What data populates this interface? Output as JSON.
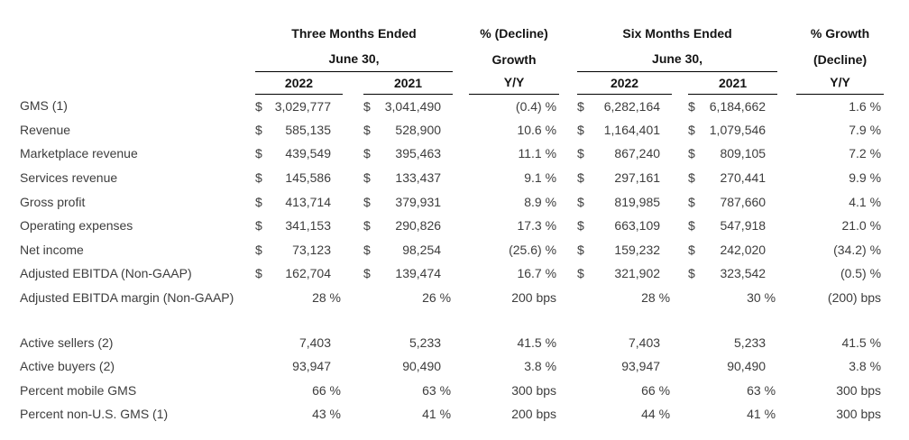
{
  "colors": {
    "background": "#ffffff",
    "header_text": "#141414",
    "body_text": "#3d3d3d",
    "rule": "#000000"
  },
  "table": {
    "currency_symbol": "$",
    "col_groups": {
      "three_months": {
        "title": "Three Months Ended",
        "subtitle": "June 30,",
        "years": [
          "2022",
          "2021"
        ]
      },
      "yoy_left": {
        "line1": "% (Decline)",
        "line2": "Growth",
        "line3": "Y/Y"
      },
      "six_months": {
        "title": "Six Months Ended",
        "subtitle": "June 30,",
        "years": [
          "2022",
          "2021"
        ]
      },
      "yoy_right": {
        "line1": "% Growth",
        "line2": "(Decline)",
        "line3": "Y/Y"
      }
    },
    "rows": [
      {
        "label": "GMS (1)",
        "cells": [
          {
            "type": "money",
            "value": "3,029,777"
          },
          {
            "type": "money",
            "value": "3,041,490"
          },
          {
            "type": "yoy",
            "value": "(0.4) %"
          },
          {
            "type": "money",
            "value": "6,282,164"
          },
          {
            "type": "money",
            "value": "6,184,662"
          },
          {
            "type": "yoy",
            "value": "1.6 %"
          }
        ]
      },
      {
        "label": "Revenue",
        "cells": [
          {
            "type": "money",
            "value": "585,135"
          },
          {
            "type": "money",
            "value": "528,900"
          },
          {
            "type": "yoy",
            "value": "10.6 %"
          },
          {
            "type": "money",
            "value": "1,164,401"
          },
          {
            "type": "money",
            "value": "1,079,546"
          },
          {
            "type": "yoy",
            "value": "7.9 %"
          }
        ]
      },
      {
        "label": "Marketplace revenue",
        "cells": [
          {
            "type": "money",
            "value": "439,549"
          },
          {
            "type": "money",
            "value": "395,463"
          },
          {
            "type": "yoy",
            "value": "11.1 %"
          },
          {
            "type": "money",
            "value": "867,240"
          },
          {
            "type": "money",
            "value": "809,105"
          },
          {
            "type": "yoy",
            "value": "7.2 %"
          }
        ]
      },
      {
        "label": "Services revenue",
        "cells": [
          {
            "type": "money",
            "value": "145,586"
          },
          {
            "type": "money",
            "value": "133,437"
          },
          {
            "type": "yoy",
            "value": "9.1 %"
          },
          {
            "type": "money",
            "value": "297,161"
          },
          {
            "type": "money",
            "value": "270,441"
          },
          {
            "type": "yoy",
            "value": "9.9 %"
          }
        ]
      },
      {
        "label": "Gross profit",
        "cells": [
          {
            "type": "money",
            "value": "413,714"
          },
          {
            "type": "money",
            "value": "379,931"
          },
          {
            "type": "yoy",
            "value": "8.9 %"
          },
          {
            "type": "money",
            "value": "819,985"
          },
          {
            "type": "money",
            "value": "787,660"
          },
          {
            "type": "yoy",
            "value": "4.1 %"
          }
        ]
      },
      {
        "label": "Operating expenses",
        "cells": [
          {
            "type": "money",
            "value": "341,153"
          },
          {
            "type": "money",
            "value": "290,826"
          },
          {
            "type": "yoy",
            "value": "17.3 %"
          },
          {
            "type": "money",
            "value": "663,109"
          },
          {
            "type": "money",
            "value": "547,918"
          },
          {
            "type": "yoy",
            "value": "21.0 %"
          }
        ]
      },
      {
        "label": "Net income",
        "cells": [
          {
            "type": "money",
            "value": "73,123"
          },
          {
            "type": "money",
            "value": "98,254"
          },
          {
            "type": "yoy",
            "value": "(25.6) %"
          },
          {
            "type": "money",
            "value": "159,232"
          },
          {
            "type": "money",
            "value": "242,020"
          },
          {
            "type": "yoy",
            "value": "(34.2) %"
          }
        ]
      },
      {
        "label": "Adjusted EBITDA (Non-GAAP)",
        "cells": [
          {
            "type": "money",
            "value": "162,704"
          },
          {
            "type": "money",
            "value": "139,474"
          },
          {
            "type": "yoy",
            "value": "16.7 %"
          },
          {
            "type": "money",
            "value": "321,902"
          },
          {
            "type": "money",
            "value": "323,542"
          },
          {
            "type": "yoy",
            "value": "(0.5) %"
          }
        ]
      },
      {
        "label": "Adjusted EBITDA margin (Non-GAAP)",
        "cells": [
          {
            "type": "pct",
            "value": "28 %"
          },
          {
            "type": "pct",
            "value": "26 %"
          },
          {
            "type": "yoy",
            "value": "200 bps"
          },
          {
            "type": "pct",
            "value": "28 %"
          },
          {
            "type": "pct",
            "value": "30 %"
          },
          {
            "type": "yoy",
            "value": "(200) bps"
          }
        ]
      },
      {
        "type": "spacer"
      },
      {
        "label": "Active sellers (2)",
        "cells": [
          {
            "type": "num",
            "value": "7,403"
          },
          {
            "type": "num",
            "value": "5,233"
          },
          {
            "type": "yoy",
            "value": "41.5 %"
          },
          {
            "type": "num",
            "value": "7,403"
          },
          {
            "type": "num",
            "value": "5,233"
          },
          {
            "type": "yoy",
            "value": "41.5 %"
          }
        ]
      },
      {
        "label": "Active buyers (2)",
        "cells": [
          {
            "type": "num",
            "value": "93,947"
          },
          {
            "type": "num",
            "value": "90,490"
          },
          {
            "type": "yoy",
            "value": "3.8 %"
          },
          {
            "type": "num",
            "value": "93,947"
          },
          {
            "type": "num",
            "value": "90,490"
          },
          {
            "type": "yoy",
            "value": "3.8 %"
          }
        ]
      },
      {
        "label": "Percent mobile GMS",
        "cells": [
          {
            "type": "pct",
            "value": "66 %"
          },
          {
            "type": "pct",
            "value": "63 %"
          },
          {
            "type": "yoy",
            "value": "300 bps"
          },
          {
            "type": "pct",
            "value": "66 %"
          },
          {
            "type": "pct",
            "value": "63 %"
          },
          {
            "type": "yoy",
            "value": "300 bps"
          }
        ]
      },
      {
        "label": "Percent non-U.S. GMS (1)",
        "cells": [
          {
            "type": "pct",
            "value": "43 %"
          },
          {
            "type": "pct",
            "value": "41 %"
          },
          {
            "type": "yoy",
            "value": "200 bps"
          },
          {
            "type": "pct",
            "value": "44 %"
          },
          {
            "type": "pct",
            "value": "41 %"
          },
          {
            "type": "yoy",
            "value": "300 bps"
          }
        ]
      }
    ]
  }
}
